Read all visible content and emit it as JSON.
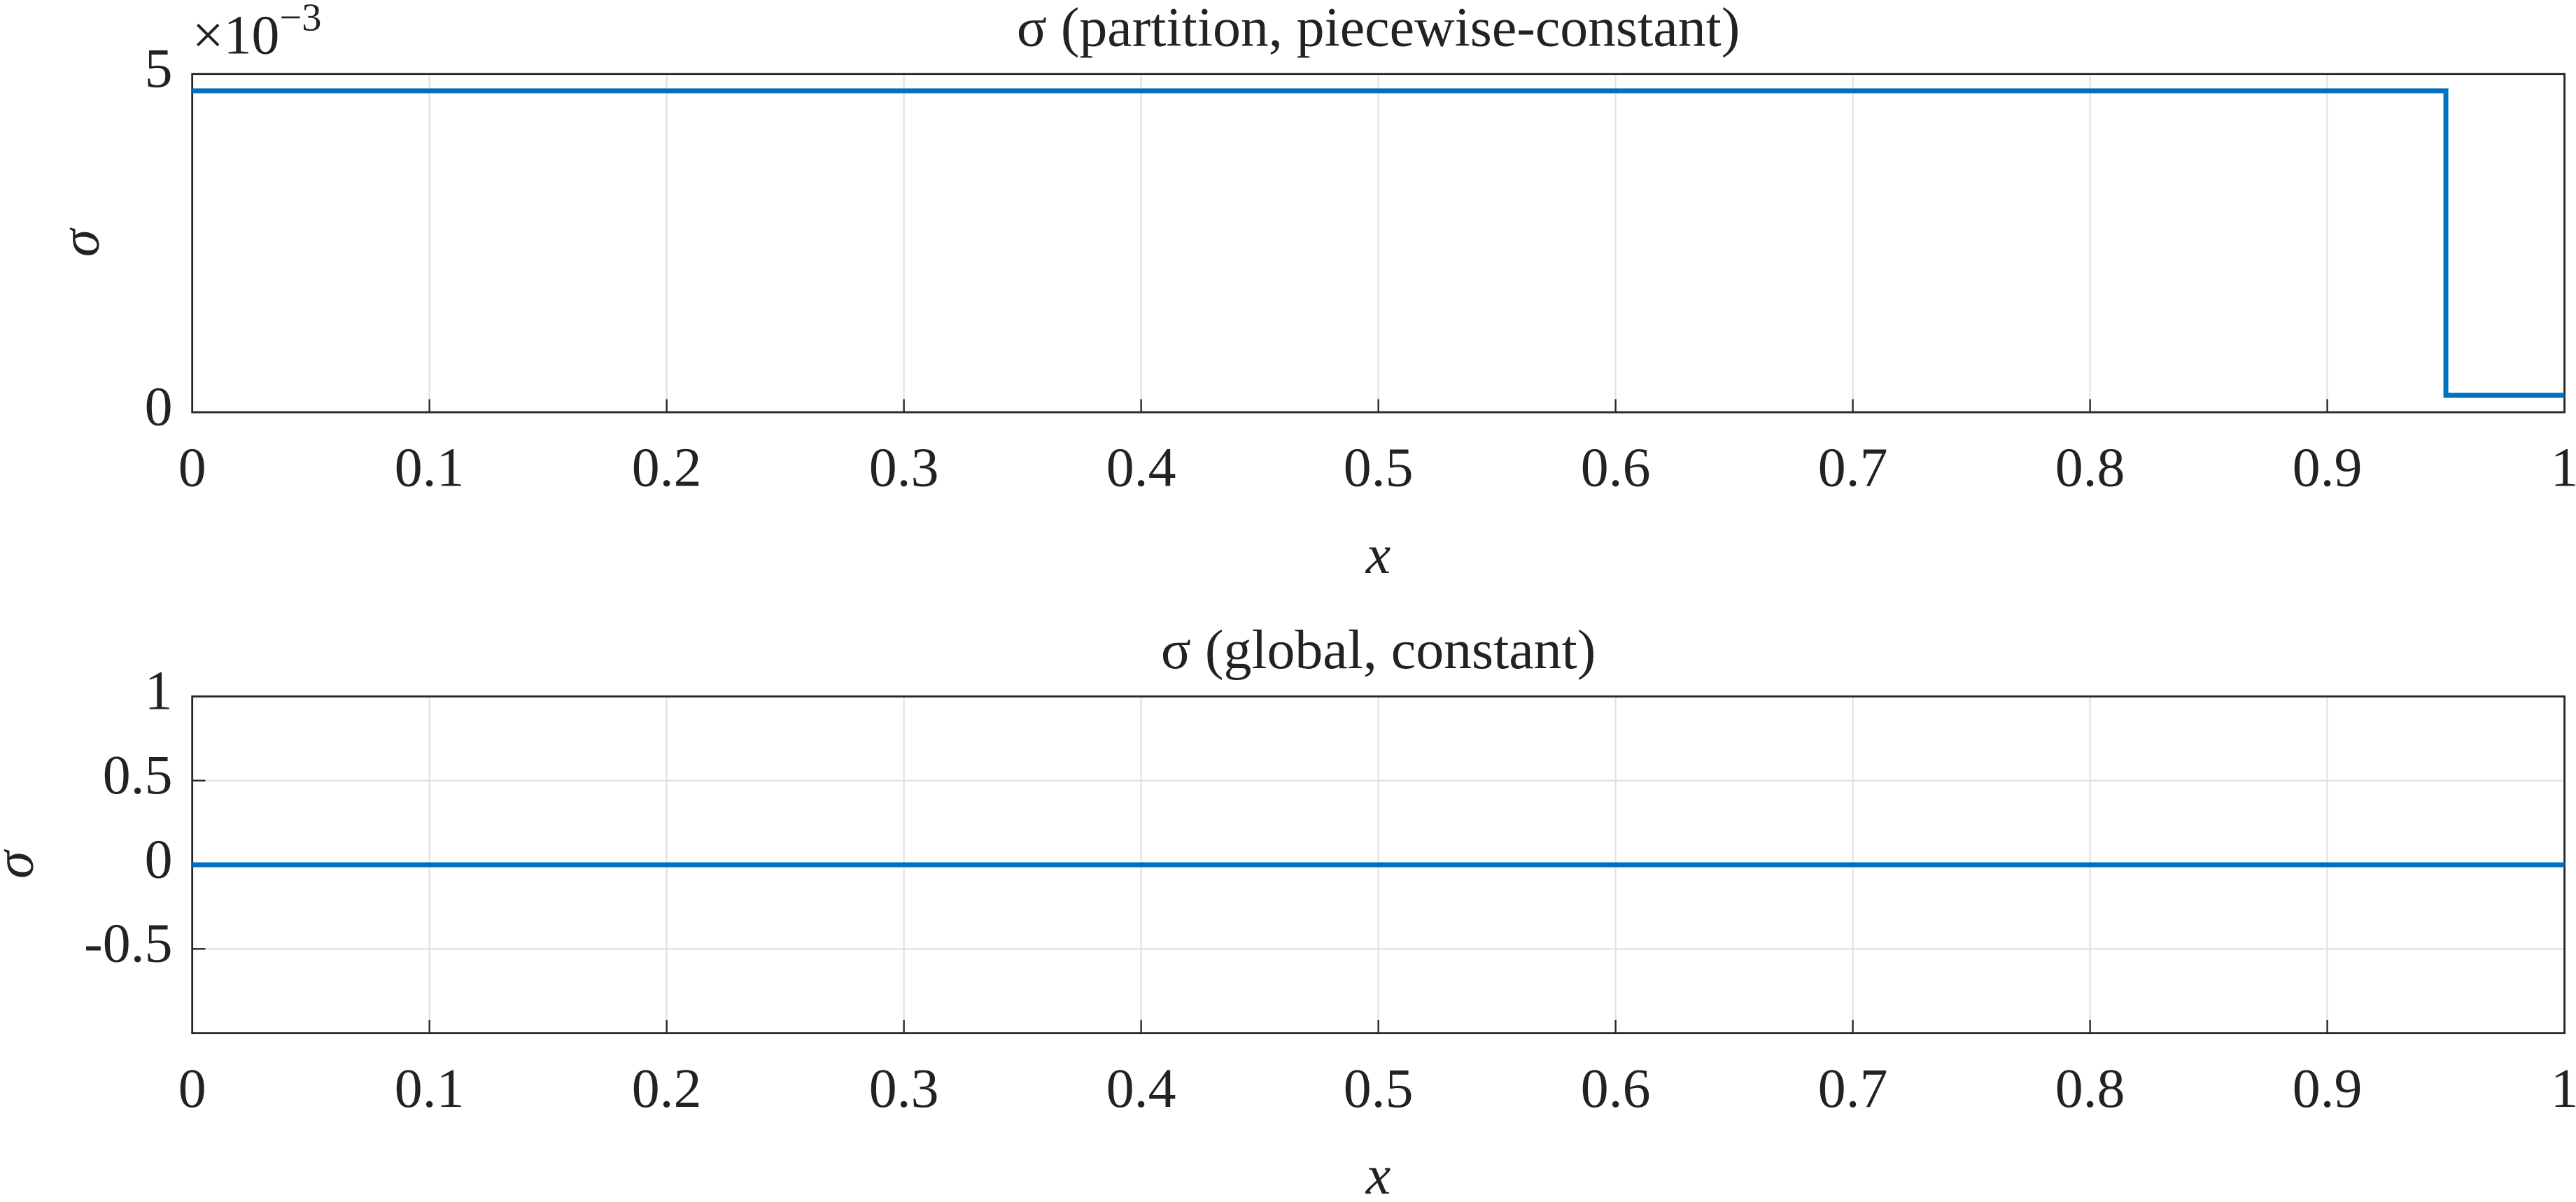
{
  "chart_data": [
    {
      "type": "line",
      "title": "σ (partition, piecewise-constant)",
      "xlabel": "x",
      "ylabel": "σ",
      "y_exponent": {
        "base": "×10",
        "power": "−3"
      },
      "x": [
        0,
        0.95,
        0.95,
        1
      ],
      "series": [
        {
          "color": "#0072bd",
          "values": [
            4.75,
            4.75,
            0.25,
            0.25
          ]
        }
      ],
      "xlim": [
        0,
        1
      ],
      "xticks": [
        0,
        0.1,
        0.2,
        0.3,
        0.4,
        0.5,
        0.6,
        0.7,
        0.8,
        0.9,
        1
      ],
      "ylim": [
        0,
        5
      ],
      "yticks": [
        0,
        5
      ],
      "grid": true
    },
    {
      "type": "line",
      "title": "σ (global, constant)",
      "xlabel": "x",
      "ylabel": "σ",
      "x": [
        0,
        1
      ],
      "series": [
        {
          "color": "#0072bd",
          "values": [
            0,
            0
          ]
        }
      ],
      "xlim": [
        0,
        1
      ],
      "xticks": [
        0,
        0.1,
        0.2,
        0.3,
        0.4,
        0.5,
        0.6,
        0.7,
        0.8,
        0.9,
        1
      ],
      "ylim": [
        -1,
        1
      ],
      "yticks": [
        -0.5,
        0,
        0.5,
        1
      ],
      "grid": true
    }
  ]
}
